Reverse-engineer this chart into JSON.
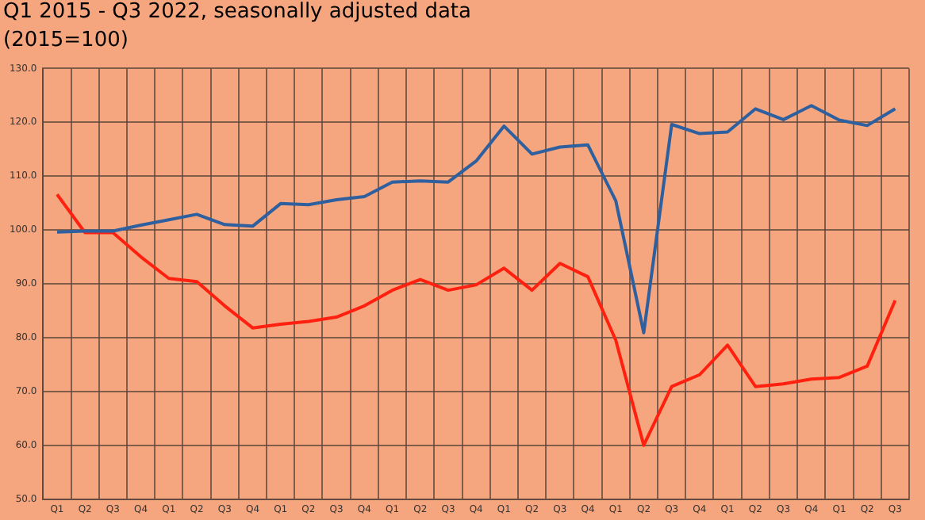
{
  "chart_data": {
    "type": "line",
    "title": "Q1 2015 - Q3 2022, seasonally adjusted data",
    "subtitle": "(2015=100)",
    "categories": [
      "Q1",
      "Q2",
      "Q3",
      "Q4",
      "Q1",
      "Q2",
      "Q3",
      "Q4",
      "Q1",
      "Q2",
      "Q3",
      "Q4",
      "Q1",
      "Q2",
      "Q3",
      "Q4",
      "Q1",
      "Q2",
      "Q3",
      "Q4",
      "Q1",
      "Q2",
      "Q3",
      "Q4",
      "Q1",
      "Q2",
      "Q3",
      "Q4",
      "Q1",
      "Q2",
      "Q3"
    ],
    "series": [
      {
        "color": "#2e5f9e",
        "values": [
          99.6,
          99.8,
          99.8,
          100.9,
          101.9,
          102.9,
          101.0,
          100.7,
          104.9,
          104.7,
          105.6,
          106.2,
          108.9,
          109.1,
          108.9,
          112.8,
          119.3,
          114.1,
          115.4,
          115.8,
          105.4,
          80.9,
          119.6,
          117.9,
          118.2,
          122.5,
          120.5,
          123.1,
          120.4,
          119.4,
          122.5
        ]
      },
      {
        "color": "#ff2010",
        "values": [
          106.6,
          99.5,
          99.5,
          95.0,
          91.0,
          90.4,
          85.9,
          81.8,
          82.5,
          83.0,
          83.8,
          85.9,
          88.8,
          90.8,
          88.8,
          89.8,
          92.9,
          88.8,
          93.8,
          91.3,
          79.5,
          60.0,
          70.9,
          73.1,
          78.6,
          70.9,
          71.4,
          72.3,
          72.6,
          74.7,
          86.9
        ]
      }
    ],
    "ylim": [
      50,
      130
    ],
    "yticks": [
      {
        "value": 50,
        "label": "50.0"
      },
      {
        "value": 60,
        "label": "60.0"
      },
      {
        "value": 70,
        "label": "70.0"
      },
      {
        "value": 80,
        "label": "80.0"
      },
      {
        "value": 90,
        "label": "90.0"
      },
      {
        "value": 100,
        "label": "100.0"
      },
      {
        "value": 110,
        "label": "110.0"
      },
      {
        "value": 120,
        "label": "120.0"
      },
      {
        "value": 130,
        "label": "130.0"
      }
    ],
    "grid": true,
    "legend": false,
    "marker": "none",
    "line_style": "solid"
  }
}
